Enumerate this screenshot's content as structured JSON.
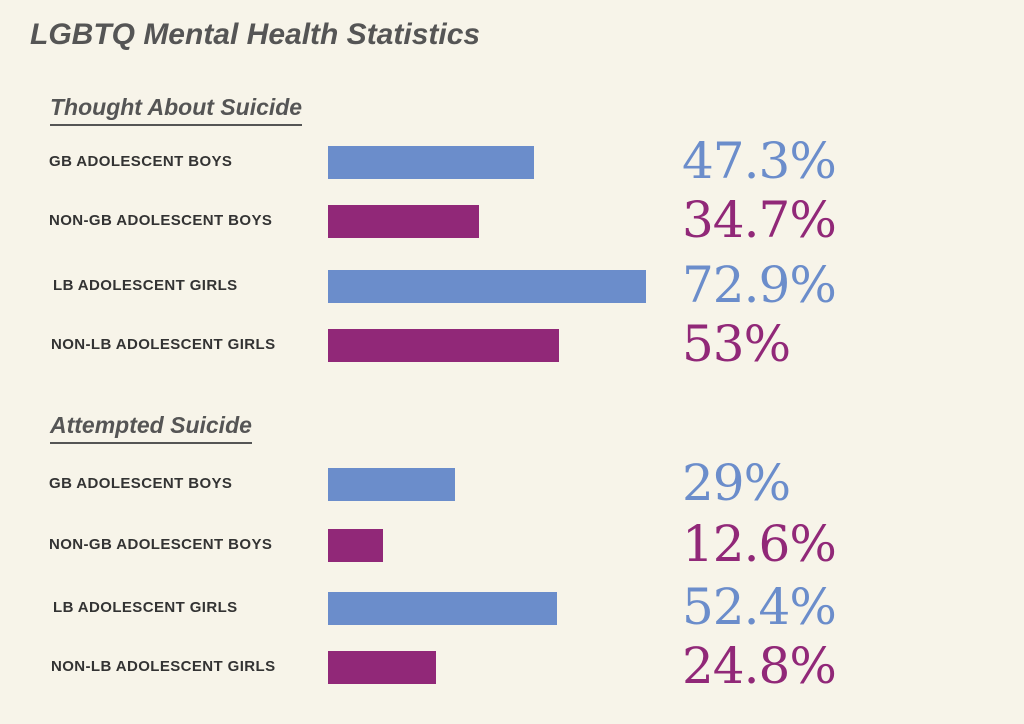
{
  "title": "LGBTQ Mental Health Statistics",
  "colors": {
    "blue": "#6b8dcb",
    "purple": "#912878",
    "background": "#f7f4e9",
    "text": "#555555"
  },
  "chart_data": [
    {
      "type": "bar",
      "title": "Thought About Suicide",
      "categories": [
        "GB ADOLESCENT BOYS",
        "NON-GB ADOLESCENT BOYS",
        "LB ADOLESCENT GIRLS",
        "NON-LB ADOLESCENT GIRLS"
      ],
      "values": [
        47.3,
        34.7,
        72.9,
        53
      ],
      "value_labels": [
        "47.3%",
        "34.7%",
        "72.9%",
        "53%"
      ],
      "bar_colors": [
        "#6b8dcb",
        "#912878",
        "#6b8dcb",
        "#912878"
      ],
      "orientation": "horizontal",
      "xlim": [
        0,
        100
      ],
      "grid": false
    },
    {
      "type": "bar",
      "title": "Attempted Suicide",
      "categories": [
        "GB ADOLESCENT BOYS",
        "NON-GB ADOLESCENT BOYS",
        "LB ADOLESCENT GIRLS",
        "NON-LB ADOLESCENT GIRLS"
      ],
      "values": [
        29,
        12.6,
        52.4,
        24.8
      ],
      "value_labels": [
        "29%",
        "12.6%",
        "52.4%",
        "24.8%"
      ],
      "bar_colors": [
        "#6b8dcb",
        "#912878",
        "#6b8dcb",
        "#912878"
      ],
      "orientation": "horizontal",
      "xlim": [
        0,
        100
      ],
      "grid": false
    }
  ]
}
